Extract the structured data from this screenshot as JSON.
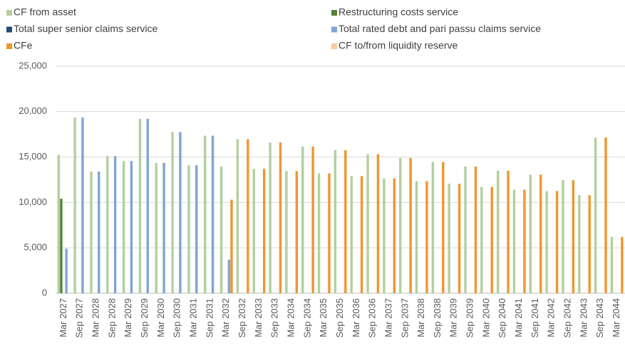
{
  "chart_data": {
    "type": "bar",
    "categories": [
      "Mar 2027",
      "Sep 2027",
      "Mar 2028",
      "Sep 2028",
      "Mar 2029",
      "Sep 2029",
      "Mar 2030",
      "Sep 2030",
      "Mar 2031",
      "Sep 2031",
      "Mar 2032",
      "Sep 2032",
      "Mar 2033",
      "Sep 2033",
      "Mar 2034",
      "Sep 2034",
      "Mar 2035",
      "Sep 2035",
      "Mar 2036",
      "Sep 2036",
      "Mar 2037",
      "Sep 2037",
      "Mar 2038",
      "Sep 2038",
      "Mar 2039",
      "Sep 2039",
      "Mar 2040",
      "Sep 2040",
      "Mar 2041",
      "Sep 2041",
      "Mar 2042",
      "Sep 2042",
      "Mar 2043",
      "Sep 2043",
      "Mar 2044"
    ],
    "series": [
      {
        "name": "CF from asset",
        "color": "#b3cf9e",
        "values": [
          15250,
          19350,
          13400,
          15100,
          14550,
          19200,
          14350,
          17750,
          14100,
          17350,
          13950,
          16950,
          13700,
          16600,
          13450,
          16150,
          13200,
          15750,
          12900,
          15300,
          12650,
          14900,
          12350,
          14450,
          12050,
          13950,
          11700,
          13500,
          11400,
          13050,
          11250,
          12450,
          10800,
          17150,
          6200
        ]
      },
      {
        "name": "Restructuring costs service",
        "color": "#548235",
        "values": [
          10400,
          null,
          null,
          null,
          null,
          null,
          null,
          null,
          null,
          null,
          null,
          null,
          null,
          null,
          null,
          null,
          null,
          null,
          null,
          null,
          null,
          null,
          null,
          null,
          null,
          null,
          null,
          null,
          null,
          null,
          null,
          null,
          null,
          null,
          null
        ]
      },
      {
        "name": "Total super senior claims service",
        "color": "#1f4e79",
        "values": [
          null,
          null,
          null,
          null,
          null,
          null,
          null,
          null,
          null,
          null,
          null,
          null,
          null,
          null,
          null,
          null,
          null,
          null,
          null,
          null,
          null,
          null,
          null,
          null,
          null,
          null,
          null,
          null,
          null,
          null,
          null,
          null,
          null,
          null,
          null
        ]
      },
      {
        "name": "Total rated debt and pari passu claims service",
        "color": "#7fa6d2",
        "values": [
          4900,
          19350,
          13400,
          15100,
          14550,
          19200,
          14350,
          17750,
          14100,
          17350,
          3700,
          null,
          null,
          null,
          null,
          null,
          null,
          null,
          null,
          null,
          null,
          null,
          null,
          null,
          null,
          null,
          null,
          null,
          null,
          null,
          null,
          null,
          null,
          null,
          null
        ]
      },
      {
        "name": "CFe",
        "color": "#f0962e",
        "values": [
          null,
          null,
          null,
          null,
          null,
          null,
          null,
          null,
          null,
          null,
          10300,
          16950,
          13700,
          16600,
          13450,
          16150,
          13200,
          15750,
          12900,
          15300,
          12650,
          14900,
          12350,
          14450,
          12050,
          13950,
          11700,
          13500,
          11400,
          13050,
          11250,
          12450,
          10800,
          17150,
          6200
        ]
      },
      {
        "name": "CF to/from liquidity reserve",
        "color": "#f8cba0",
        "values": [
          null,
          null,
          null,
          null,
          null,
          null,
          null,
          null,
          null,
          null,
          null,
          null,
          null,
          null,
          null,
          null,
          null,
          null,
          null,
          null,
          null,
          null,
          null,
          null,
          null,
          null,
          null,
          null,
          null,
          null,
          null,
          null,
          null,
          null,
          null
        ]
      }
    ],
    "ylim": [
      0,
      25000
    ],
    "yticks": [
      0,
      {
        "value": 5000,
        "label": "5,000"
      },
      {
        "value": 10000,
        "label": "10,000"
      },
      {
        "value": 15000,
        "label": "15,000"
      },
      {
        "value": 20000,
        "label": "20,000"
      },
      {
        "value": 25000,
        "label": "25,000"
      }
    ],
    "grid": true,
    "legend": "top"
  }
}
